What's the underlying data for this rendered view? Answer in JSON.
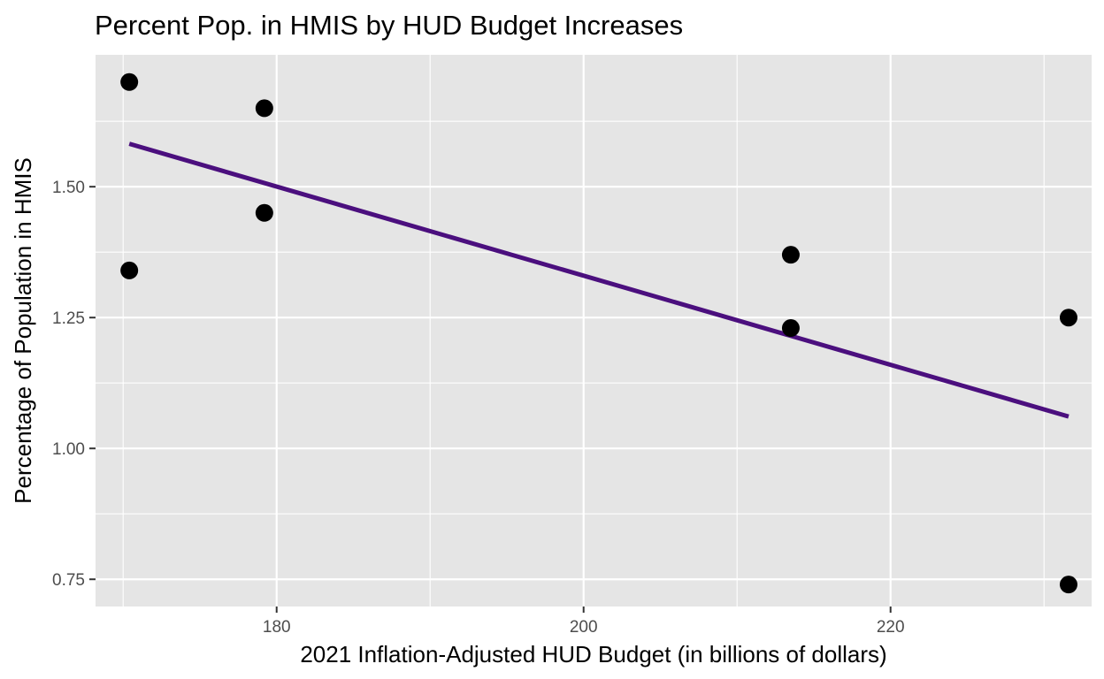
{
  "chart_data": {
    "type": "scatter",
    "title": "Percent Pop. in HMIS by HUD Budget Increases",
    "xlabel": "2021 Inflation-Adjusted HUD Budget (in billions of dollars)",
    "ylabel": "Percentage of Population in HMIS",
    "xlim": [
      168.2,
      233.1
    ],
    "ylim": [
      0.698,
      1.752
    ],
    "x_ticks": [
      180,
      200,
      220
    ],
    "x_tick_labels": [
      "180",
      "200",
      "220"
    ],
    "x_minor_ticks": [
      170,
      190,
      210,
      230
    ],
    "y_ticks": [
      0.75,
      1.0,
      1.25,
      1.5
    ],
    "y_tick_labels": [
      "0.75",
      "1.00",
      "1.25",
      "1.50"
    ],
    "y_minor_ticks": [
      0.875,
      1.125,
      1.375,
      1.625
    ],
    "grid": true,
    "legend": "none",
    "panel_background": "#e5e5e5",
    "grid_color": "#ffffff",
    "point_color": "#000000",
    "series": [
      {
        "type": "scatter",
        "points": [
          {
            "x": 170.4,
            "y": 1.7
          },
          {
            "x": 170.4,
            "y": 1.34
          },
          {
            "x": 179.2,
            "y": 1.65
          },
          {
            "x": 179.2,
            "y": 1.45
          },
          {
            "x": 213.5,
            "y": 1.37
          },
          {
            "x": 213.5,
            "y": 1.23
          },
          {
            "x": 231.6,
            "y": 1.25
          },
          {
            "x": 231.6,
            "y": 0.74
          }
        ]
      },
      {
        "type": "line",
        "color": "#4b0f7e",
        "points": [
          {
            "x": 170.4,
            "y": 1.582
          },
          {
            "x": 231.6,
            "y": 1.061
          }
        ]
      }
    ]
  }
}
